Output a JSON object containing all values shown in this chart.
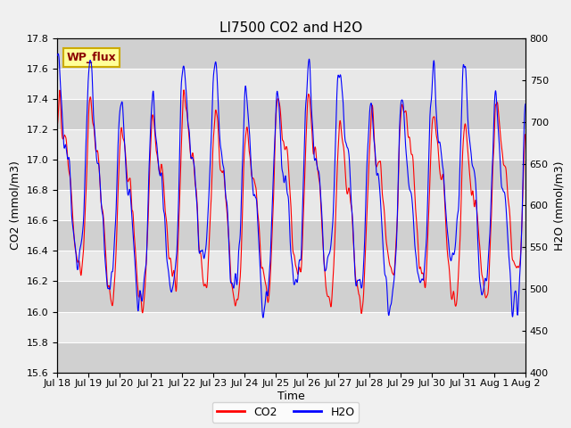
{
  "title": "LI7500 CO2 and H2O",
  "xlabel": "Time",
  "ylabel_left": "CO2 (mmol/m3)",
  "ylabel_right": "H2O (mmol/m3)",
  "annotation": "WP_flux",
  "co2_ylim": [
    15.6,
    17.8
  ],
  "h2o_ylim": [
    400,
    800
  ],
  "co2_yticks": [
    15.6,
    15.8,
    16.0,
    16.2,
    16.4,
    16.6,
    16.8,
    17.0,
    17.2,
    17.4,
    17.6,
    17.8
  ],
  "h2o_yticks": [
    400,
    450,
    500,
    550,
    600,
    650,
    700,
    750,
    800
  ],
  "co2_color": "#ff0000",
  "h2o_color": "#0000ff",
  "fig_facecolor": "#f0f0f0",
  "plot_bg_color": "#e8e8e8",
  "band_color_dark": "#d0d0d0",
  "grid_color": "#ffffff",
  "linewidth": 0.8,
  "title_fontsize": 11,
  "label_fontsize": 9,
  "tick_fontsize": 8,
  "legend_fontsize": 9,
  "annotation_bg": "#ffff99",
  "annotation_border": "#ccaa00",
  "annotation_color": "#8B0000",
  "n_points": 3000
}
